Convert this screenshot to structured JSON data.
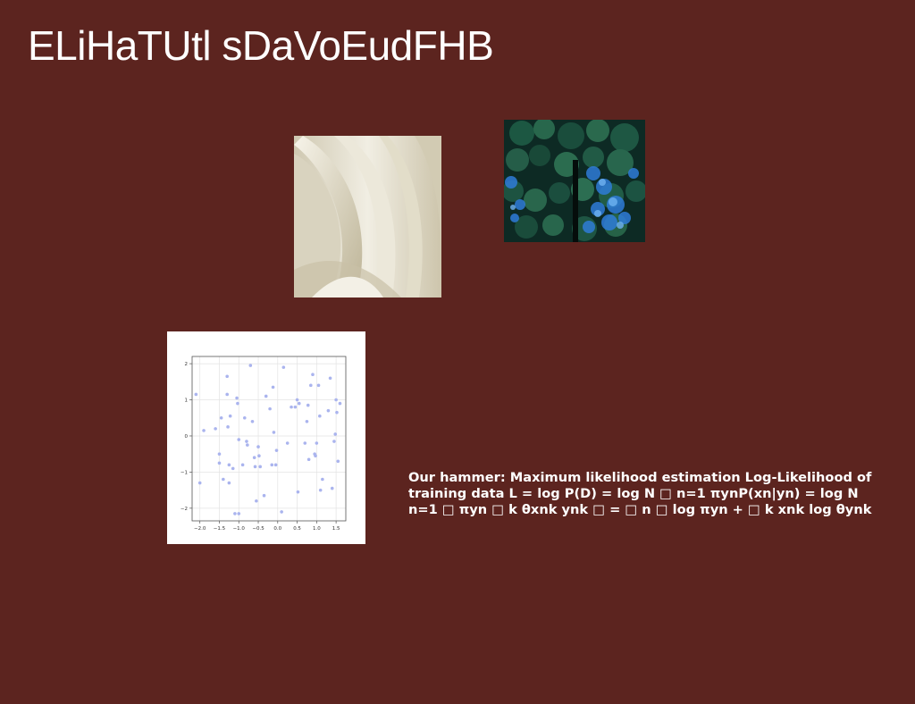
{
  "slide": {
    "title": "ELiHaTUtl sDaVoEudFHB",
    "body_text": "Our hammer: Maximum likelihood estimation Log-Likelihood of\ntraining data L = log P(D) = log N □ n=1 πynP(xn|yn) = log N\nn=1 □ πyn □ k θxnk ynk □ = □ n □ log πyn + □ k xnk log θynk"
  },
  "colors": {
    "background": "#5c241f",
    "text": "#ffffff",
    "scatter_points": "#aab4ee"
  },
  "scatter_plot": {
    "x_ticks": [
      "−2.0",
      "−1.5",
      "−1.0",
      "−0.5",
      "0.0",
      "0.5",
      "1.0",
      "1.5"
    ],
    "y_ticks": [
      "2",
      "1",
      "0",
      "−1",
      "−2"
    ],
    "xlim": [
      -2.2,
      1.75
    ],
    "ylim": [
      -2.35,
      2.2
    ],
    "points": [
      [
        -2.1,
        1.15
      ],
      [
        -2.0,
        -1.3
      ],
      [
        -1.9,
        0.15
      ],
      [
        -1.6,
        0.2
      ],
      [
        -1.5,
        -0.5
      ],
      [
        -1.5,
        -0.75
      ],
      [
        -1.45,
        0.5
      ],
      [
        -1.4,
        -1.2
      ],
      [
        -1.3,
        1.65
      ],
      [
        -1.3,
        1.15
      ],
      [
        -1.28,
        0.25
      ],
      [
        -1.25,
        -0.8
      ],
      [
        -1.25,
        -1.3
      ],
      [
        -1.22,
        0.55
      ],
      [
        -1.15,
        -0.9
      ],
      [
        -1.1,
        -2.15
      ],
      [
        -1.05,
        1.05
      ],
      [
        -1.03,
        0.9
      ],
      [
        -1.0,
        -0.1
      ],
      [
        -1.0,
        -2.15
      ],
      [
        -0.9,
        -0.8
      ],
      [
        -0.85,
        0.5
      ],
      [
        -0.8,
        -0.15
      ],
      [
        -0.78,
        -0.25
      ],
      [
        -0.7,
        1.95
      ],
      [
        -0.65,
        0.4
      ],
      [
        -0.6,
        -0.6
      ],
      [
        -0.58,
        -0.85
      ],
      [
        -0.55,
        -1.8
      ],
      [
        -0.5,
        -0.3
      ],
      [
        -0.48,
        -0.55
      ],
      [
        -0.45,
        -0.85
      ],
      [
        -0.35,
        -1.65
      ],
      [
        -0.3,
        1.1
      ],
      [
        -0.2,
        0.75
      ],
      [
        -0.15,
        -0.8
      ],
      [
        -0.12,
        1.35
      ],
      [
        -0.1,
        0.1
      ],
      [
        -0.05,
        -0.8
      ],
      [
        -0.03,
        -0.4
      ],
      [
        0.1,
        -2.1
      ],
      [
        0.15,
        1.9
      ],
      [
        0.25,
        -0.2
      ],
      [
        0.35,
        0.8
      ],
      [
        0.45,
        0.8
      ],
      [
        0.5,
        1.0
      ],
      [
        0.52,
        -1.55
      ],
      [
        0.55,
        0.9
      ],
      [
        0.7,
        -0.2
      ],
      [
        0.75,
        0.4
      ],
      [
        0.78,
        0.85
      ],
      [
        0.8,
        -0.65
      ],
      [
        0.85,
        1.4
      ],
      [
        0.9,
        1.7
      ],
      [
        0.95,
        -0.5
      ],
      [
        0.97,
        -0.55
      ],
      [
        1.0,
        -0.2
      ],
      [
        1.05,
        1.4
      ],
      [
        1.08,
        0.55
      ],
      [
        1.1,
        -1.5
      ],
      [
        1.15,
        -1.2
      ],
      [
        1.3,
        0.7
      ],
      [
        1.35,
        1.6
      ],
      [
        1.4,
        -1.45
      ],
      [
        1.45,
        -0.15
      ],
      [
        1.48,
        0.05
      ],
      [
        1.5,
        1.0
      ],
      [
        1.52,
        0.65
      ],
      [
        1.55,
        -0.7
      ],
      [
        1.6,
        0.9
      ]
    ]
  }
}
